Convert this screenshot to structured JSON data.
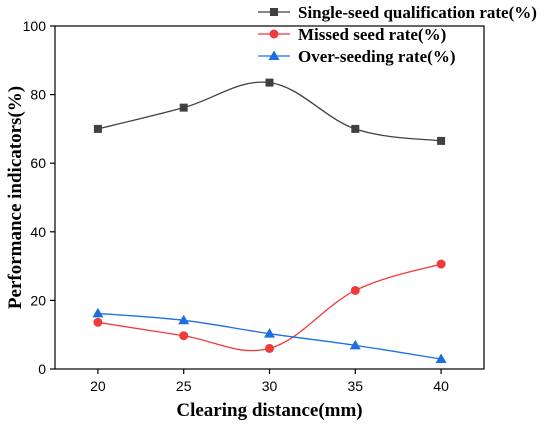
{
  "chart_data": {
    "type": "line",
    "title": "",
    "xlabel": "Clearing distance(mm)",
    "ylabel": "Performance indicators(%)",
    "x": [
      20,
      25,
      30,
      35,
      40
    ],
    "x_ticks": [
      20,
      25,
      30,
      35,
      40
    ],
    "xlim": [
      17.5,
      42.5
    ],
    "y_ticks": [
      0,
      20,
      40,
      60,
      80,
      100
    ],
    "ylim": [
      0,
      100
    ],
    "grid": false,
    "legend_position": "top-right",
    "series": [
      {
        "name": "Single-seed qualification rate(%)",
        "values": [
          70.0,
          76.2,
          83.5,
          70.0,
          66.5
        ],
        "color": "#404040",
        "marker": "square"
      },
      {
        "name": "Missed seed rate(%)",
        "values": [
          13.6,
          9.7,
          6.0,
          22.9,
          30.6
        ],
        "color": "#ee3b3b",
        "marker": "circle"
      },
      {
        "name": "Over-seeding rate(%)",
        "values": [
          16.2,
          14.2,
          10.3,
          6.9,
          2.9
        ],
        "color": "#1c6fe0",
        "marker": "triangle"
      }
    ]
  }
}
